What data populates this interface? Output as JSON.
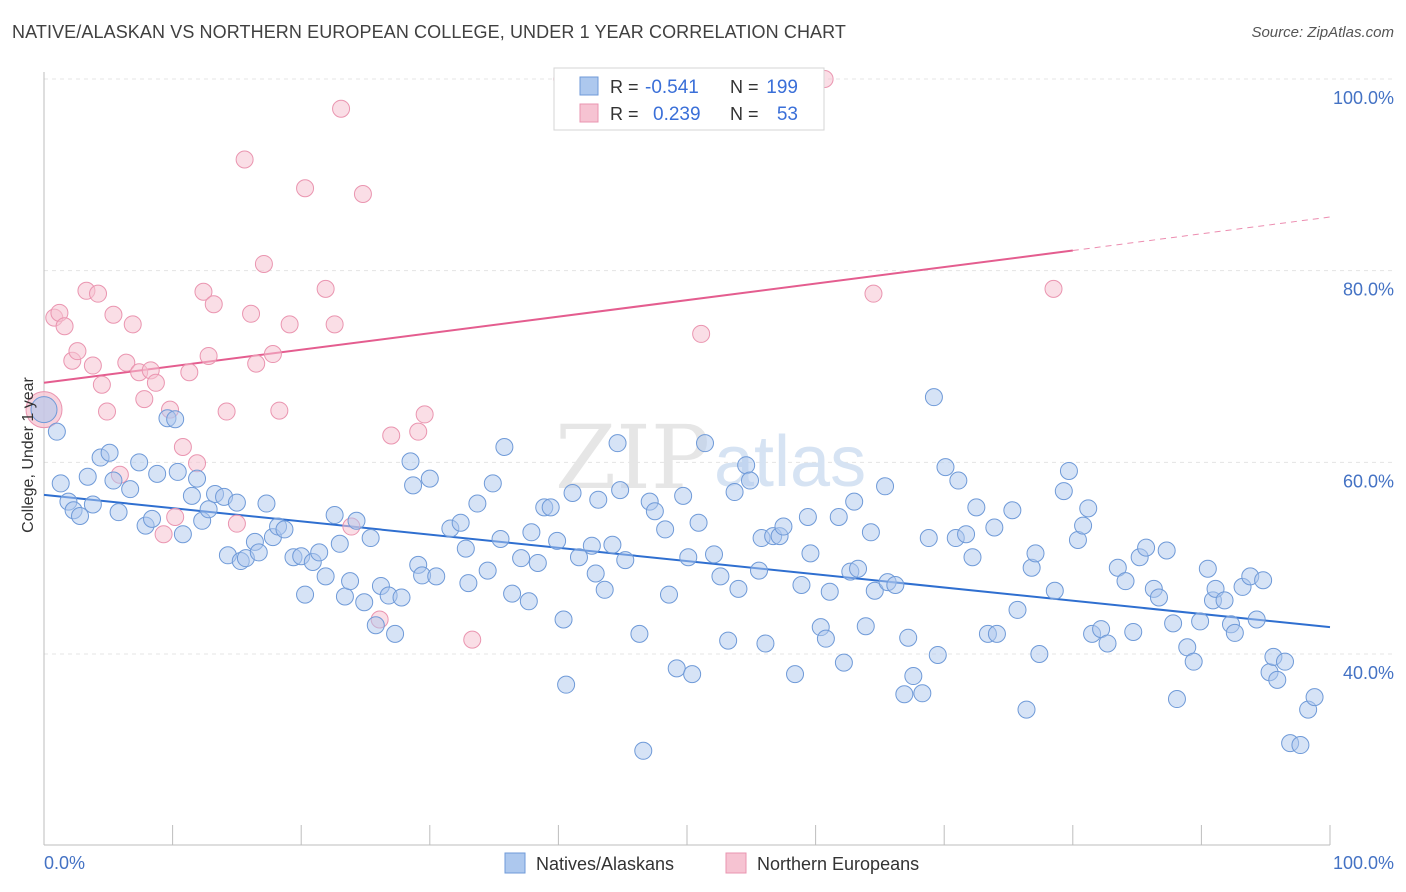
{
  "title": "NATIVE/ALASKAN VS NORTHERN EUROPEAN COLLEGE, UNDER 1 YEAR CORRELATION CHART",
  "source": "Source: ZipAtlas.com",
  "watermark": {
    "part1": "ZIP",
    "part2": "atlas"
  },
  "colors": {
    "blue_fill": "#adc8ee",
    "blue_stroke": "#6f9ad8",
    "blue_line": "#2f6fd0",
    "pink_fill": "#f6c3d2",
    "pink_stroke": "#ea95b0",
    "pink_line": "#e45d8f",
    "accent_text": "#3a6fd8",
    "grid": "#e4e4e4"
  },
  "legend": {
    "rows": [
      {
        "r_label": "R =",
        "r_value": "-0.541",
        "n_label": "N =",
        "n_value": "199"
      },
      {
        "r_label": "R =",
        "r_value": "0.239",
        "n_label": "N =",
        "n_value": "53"
      }
    ],
    "bottom": [
      "Natives/Alaskans",
      "Northern Europeans"
    ]
  },
  "chart_data": {
    "type": "scatter",
    "title": "NATIVE/ALASKAN VS NORTHERN EUROPEAN COLLEGE, UNDER 1 YEAR CORRELATION CHART",
    "xlabel": "",
    "ylabel": "College, Under 1 year",
    "xlim": [
      0,
      100
    ],
    "ylim": [
      21,
      102
    ],
    "x_tick_labels": [
      "0.0%",
      "100.0%"
    ],
    "y_ticks": [
      40,
      60,
      80,
      100
    ],
    "y_tick_labels": [
      "40.0%",
      "60.0%",
      "80.0%",
      "100.0%"
    ],
    "grid": "horizontal dashed",
    "legend_position": "top-center",
    "series": [
      {
        "name": "Natives/Alaskans",
        "trend": {
          "x": [
            0,
            100
          ],
          "y": [
            56.6,
            42.8
          ]
        },
        "points": [
          [
            0,
            65.5
          ],
          [
            1,
            63.2
          ],
          [
            1.3,
            57.8
          ],
          [
            1.9,
            55.9
          ],
          [
            2.3,
            55
          ],
          [
            2.8,
            54.4
          ],
          [
            3.4,
            58.5
          ],
          [
            3.8,
            55.6
          ],
          [
            4.4,
            60.5
          ],
          [
            5.1,
            61
          ],
          [
            5.4,
            58.1
          ],
          [
            5.8,
            54.8
          ],
          [
            6.7,
            57.2
          ],
          [
            7.4,
            60
          ],
          [
            7.9,
            53.4
          ],
          [
            8.4,
            54.1
          ],
          [
            8.8,
            58.8
          ],
          [
            9.6,
            64.6
          ],
          [
            10.2,
            64.5
          ],
          [
            10.4,
            59
          ],
          [
            10.8,
            52.5
          ],
          [
            11.5,
            56.5
          ],
          [
            11.9,
            58.3
          ],
          [
            12.3,
            53.9
          ],
          [
            12.8,
            55.1
          ],
          [
            13.3,
            56.7
          ],
          [
            14,
            56.4
          ],
          [
            14.3,
            50.3
          ],
          [
            15,
            55.8
          ],
          [
            15.3,
            49.7
          ],
          [
            15.7,
            50
          ],
          [
            16.4,
            51.7
          ],
          [
            16.7,
            50.6
          ],
          [
            17.3,
            55.7
          ],
          [
            17.8,
            52.2
          ],
          [
            18.2,
            53.3
          ],
          [
            18.7,
            53
          ],
          [
            19.4,
            50.1
          ],
          [
            20,
            50.2
          ],
          [
            20.3,
            46.2
          ],
          [
            20.9,
            49.6
          ],
          [
            21.4,
            50.6
          ],
          [
            21.9,
            48.1
          ],
          [
            22.6,
            54.5
          ],
          [
            23,
            51.5
          ],
          [
            23.4,
            46
          ],
          [
            23.8,
            47.6
          ],
          [
            24.3,
            53.9
          ],
          [
            24.9,
            45.4
          ],
          [
            25.4,
            52.1
          ],
          [
            25.8,
            43
          ],
          [
            26.2,
            47.1
          ],
          [
            26.8,
            46.1
          ],
          [
            27.3,
            42.1
          ],
          [
            27.8,
            45.9
          ],
          [
            28.5,
            60.1
          ],
          [
            28.7,
            57.6
          ],
          [
            29.1,
            49.3
          ],
          [
            29.4,
            48.2
          ],
          [
            30,
            58.3
          ],
          [
            30.5,
            48.1
          ],
          [
            31.6,
            53.1
          ],
          [
            32.4,
            53.7
          ],
          [
            32.8,
            51
          ],
          [
            33,
            47.4
          ],
          [
            33.7,
            55.7
          ],
          [
            34.5,
            48.7
          ],
          [
            34.9,
            57.8
          ],
          [
            35.5,
            52
          ],
          [
            35.8,
            61.6
          ],
          [
            36.4,
            46.3
          ],
          [
            37.1,
            50
          ],
          [
            37.7,
            45.5
          ],
          [
            37.9,
            52.7
          ],
          [
            38.4,
            49.5
          ],
          [
            38.9,
            55.3
          ],
          [
            39.4,
            55.3
          ],
          [
            39.9,
            51.8
          ],
          [
            40.4,
            43.6
          ],
          [
            40.6,
            36.8
          ],
          [
            41.1,
            56.8
          ],
          [
            41.6,
            50.1
          ],
          [
            42.6,
            51.3
          ],
          [
            42.9,
            48.4
          ],
          [
            43.1,
            56.1
          ],
          [
            43.6,
            46.7
          ],
          [
            44.2,
            51.4
          ],
          [
            44.6,
            62
          ],
          [
            44.8,
            57.1
          ],
          [
            45.2,
            49.8
          ],
          [
            46.3,
            42.1
          ],
          [
            46.6,
            29.9
          ],
          [
            47.1,
            55.9
          ],
          [
            47.5,
            54.9
          ],
          [
            48.3,
            53
          ],
          [
            48.6,
            46.2
          ],
          [
            49.2,
            38.5
          ],
          [
            49.7,
            56.5
          ],
          [
            50.1,
            50.1
          ],
          [
            50.4,
            37.9
          ],
          [
            50.9,
            53.7
          ],
          [
            51.4,
            62
          ],
          [
            52.1,
            50.4
          ],
          [
            52.6,
            48.1
          ],
          [
            53.2,
            41.4
          ],
          [
            53.7,
            56.9
          ],
          [
            54,
            46.8
          ],
          [
            54.6,
            59.7
          ],
          [
            54.9,
            58.1
          ],
          [
            55.6,
            48.7
          ],
          [
            55.8,
            52.1
          ],
          [
            56.1,
            41.1
          ],
          [
            56.7,
            52.3
          ],
          [
            57.2,
            52.3
          ],
          [
            57.5,
            53.3
          ],
          [
            58.4,
            37.9
          ],
          [
            58.9,
            47.2
          ],
          [
            59.4,
            54.3
          ],
          [
            59.6,
            50.5
          ],
          [
            60.4,
            42.8
          ],
          [
            60.8,
            41.6
          ],
          [
            61.1,
            46.5
          ],
          [
            61.8,
            54.3
          ],
          [
            62.2,
            39.1
          ],
          [
            62.7,
            48.6
          ],
          [
            63,
            55.9
          ],
          [
            63.3,
            48.9
          ],
          [
            63.9,
            42.9
          ],
          [
            64.3,
            52.7
          ],
          [
            64.6,
            46.6
          ],
          [
            65.4,
            57.5
          ],
          [
            65.6,
            47.5
          ],
          [
            66.2,
            47.2
          ],
          [
            66.9,
            35.8
          ],
          [
            67.2,
            41.7
          ],
          [
            67.6,
            37.7
          ],
          [
            68.3,
            35.9
          ],
          [
            68.8,
            52.1
          ],
          [
            69.2,
            66.8
          ],
          [
            69.5,
            39.9
          ],
          [
            70.1,
            59.5
          ],
          [
            70.9,
            52.1
          ],
          [
            71.1,
            58.1
          ],
          [
            71.7,
            52.5
          ],
          [
            72.2,
            50.1
          ],
          [
            72.5,
            55.3
          ],
          [
            73.4,
            42.1
          ],
          [
            73.9,
            53.2
          ],
          [
            74.1,
            42.1
          ],
          [
            75.3,
            55
          ],
          [
            75.7,
            44.6
          ],
          [
            76.4,
            34.2
          ],
          [
            76.8,
            49
          ],
          [
            77.1,
            50.5
          ],
          [
            77.4,
            40
          ],
          [
            78.6,
            46.6
          ],
          [
            79.3,
            57
          ],
          [
            79.7,
            59.1
          ],
          [
            80.4,
            51.9
          ],
          [
            80.8,
            53.4
          ],
          [
            81.2,
            55.2
          ],
          [
            81.5,
            42.1
          ],
          [
            82.2,
            42.6
          ],
          [
            82.7,
            41.1
          ],
          [
            83.5,
            49
          ],
          [
            84.1,
            47.6
          ],
          [
            84.7,
            42.3
          ],
          [
            85.2,
            50.1
          ],
          [
            85.7,
            51.1
          ],
          [
            86.3,
            46.8
          ],
          [
            86.7,
            45.9
          ],
          [
            87.3,
            50.8
          ],
          [
            87.8,
            43.2
          ],
          [
            88.1,
            35.3
          ],
          [
            88.9,
            40.7
          ],
          [
            89.4,
            39.2
          ],
          [
            89.9,
            43.4
          ],
          [
            90.5,
            48.9
          ],
          [
            90.9,
            45.6
          ],
          [
            91.1,
            46.8
          ],
          [
            91.8,
            45.6
          ],
          [
            92.3,
            43.1
          ],
          [
            92.6,
            42.2
          ],
          [
            93.2,
            47
          ],
          [
            93.8,
            48.1
          ],
          [
            94.3,
            43.6
          ],
          [
            94.8,
            47.7
          ],
          [
            95.3,
            38.1
          ],
          [
            95.6,
            39.7
          ],
          [
            95.9,
            37.3
          ],
          [
            96.5,
            39.2
          ],
          [
            96.9,
            30.7
          ],
          [
            97.7,
            30.5
          ],
          [
            98.3,
            34.2
          ],
          [
            98.8,
            35.5
          ]
        ]
      },
      {
        "name": "Northern Europeans",
        "trend": {
          "x": [
            0,
            80
          ],
          "y": [
            68.3,
            82.1
          ]
        },
        "trend_extension": {
          "x": [
            80,
            100
          ],
          "y": [
            82.1,
            85.6
          ]
        },
        "points": [
          [
            0,
            65.5
          ],
          [
            0.8,
            75.1
          ],
          [
            1.2,
            75.6
          ],
          [
            1.6,
            74.2
          ],
          [
            2.2,
            70.6
          ],
          [
            2.6,
            71.6
          ],
          [
            3.3,
            77.9
          ],
          [
            3.8,
            70.1
          ],
          [
            4.2,
            77.6
          ],
          [
            4.5,
            68.1
          ],
          [
            4.9,
            65.3
          ],
          [
            5.4,
            75.4
          ],
          [
            5.9,
            58.7
          ],
          [
            6.4,
            70.4
          ],
          [
            6.9,
            74.4
          ],
          [
            7.4,
            69.4
          ],
          [
            7.8,
            66.6
          ],
          [
            8.3,
            69.6
          ],
          [
            8.7,
            68.3
          ],
          [
            9.3,
            52.5
          ],
          [
            9.8,
            65.5
          ],
          [
            10.2,
            54.3
          ],
          [
            10.8,
            61.6
          ],
          [
            11.3,
            69.4
          ],
          [
            11.9,
            59.9
          ],
          [
            12.4,
            77.8
          ],
          [
            12.8,
            71.1
          ],
          [
            13.2,
            76.5
          ],
          [
            14.2,
            65.3
          ],
          [
            15,
            53.6
          ],
          [
            15.6,
            91.6
          ],
          [
            16.1,
            75.5
          ],
          [
            16.5,
            70.3
          ],
          [
            17.1,
            80.7
          ],
          [
            17.8,
            71.3
          ],
          [
            18.3,
            65.4
          ],
          [
            19.1,
            74.4
          ],
          [
            20.3,
            88.6
          ],
          [
            21.9,
            78.1
          ],
          [
            22.6,
            74.4
          ],
          [
            23.1,
            96.9
          ],
          [
            23.9,
            53.3
          ],
          [
            24.8,
            88
          ],
          [
            26.1,
            43.6
          ],
          [
            27,
            62.8
          ],
          [
            29.1,
            63.2
          ],
          [
            29.6,
            65
          ],
          [
            33.3,
            41.5
          ],
          [
            40.3,
            100
          ],
          [
            51.1,
            73.4
          ],
          [
            60.7,
            100
          ],
          [
            64.5,
            77.6
          ],
          [
            78.5,
            78.1
          ]
        ]
      }
    ]
  }
}
